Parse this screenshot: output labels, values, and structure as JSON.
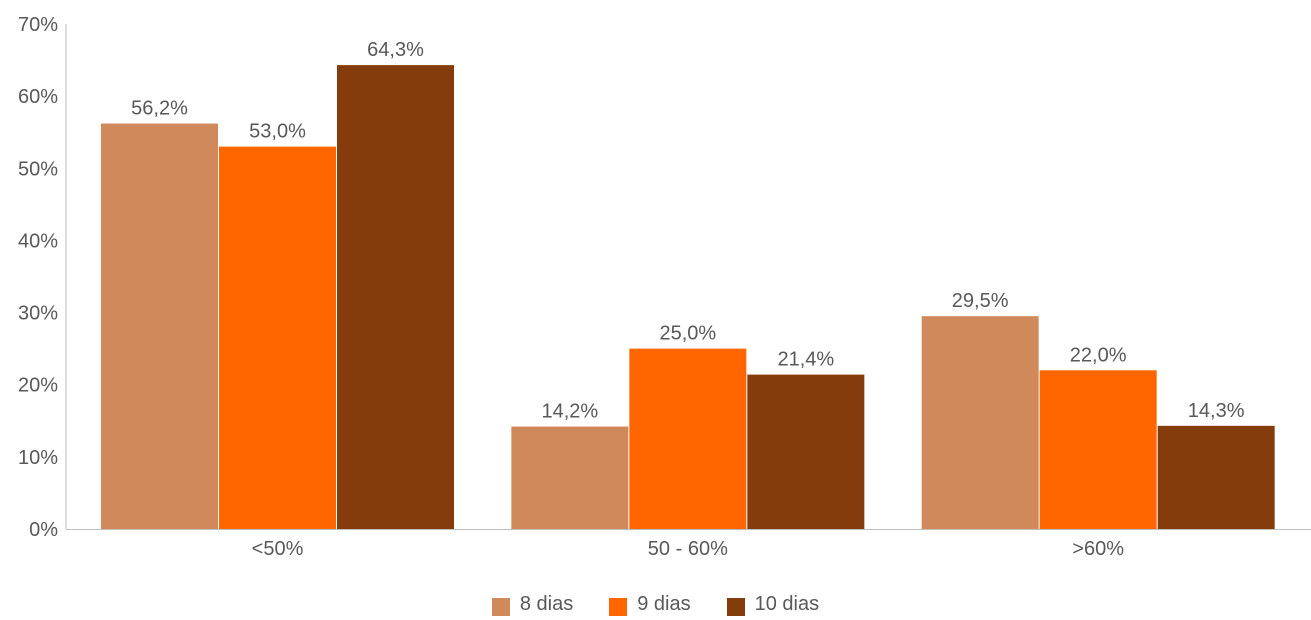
{
  "chart_data": {
    "type": "bar",
    "title": "",
    "xlabel": "",
    "ylabel": "",
    "ylim": [
      0,
      70
    ],
    "y_ticks": [
      "0%",
      "10%",
      "20%",
      "30%",
      "40%",
      "50%",
      "60%",
      "70%"
    ],
    "categories": [
      "<50%",
      "50 - 60%",
      ">60%"
    ],
    "series": [
      {
        "name": "8 dias",
        "color": "#D0895B",
        "values": [
          56.2,
          14.2,
          29.5
        ],
        "labels": [
          "56,2%",
          "14,2%",
          "29,5%"
        ]
      },
      {
        "name": "9 dias",
        "color": "#FF6600",
        "values": [
          53.0,
          25.0,
          22.0
        ],
        "labels": [
          "53,0%",
          "25,0%",
          "22,0%"
        ]
      },
      {
        "name": "10 dias",
        "color": "#843C0C",
        "values": [
          64.3,
          21.4,
          14.3
        ],
        "labels": [
          "64,3%",
          "21,4%",
          "14,3%"
        ]
      }
    ],
    "grid": false,
    "legend_position": "bottom",
    "axis_color": "#BFBFBF",
    "text_color": "#595959"
  }
}
